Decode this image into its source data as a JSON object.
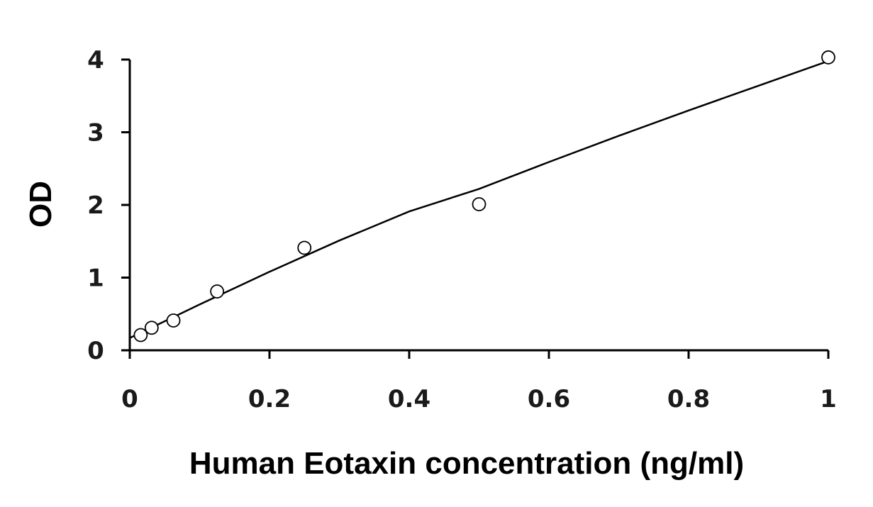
{
  "chart_data": {
    "type": "scatter",
    "title": "",
    "xlabel": "Human Eotaxin concentration (ng/ml)",
    "ylabel": "OD",
    "xlim": [
      0,
      1
    ],
    "ylim": [
      0,
      4
    ],
    "x_ticks": [
      "0",
      "0.2",
      "0.4",
      "0.6",
      "0.8",
      "1"
    ],
    "y_ticks": [
      "0",
      "1",
      "2",
      "3",
      "4"
    ],
    "grid": false,
    "legend": "none",
    "series": [
      {
        "marker": "open-circle",
        "x": [
          0.0156,
          0.0313,
          0.0625,
          0.125,
          0.25,
          0.5,
          1.0
        ],
        "y": [
          0.21,
          0.31,
          0.41,
          0.81,
          1.41,
          2.01,
          4.03
        ]
      }
    ],
    "fit_line": {
      "x": [
        0,
        0.1,
        0.2,
        0.3,
        0.4,
        0.5,
        0.6,
        0.7,
        0.8,
        0.9,
        1.0
      ],
      "y": [
        0.17,
        0.63,
        1.08,
        1.51,
        1.91,
        2.22,
        2.59,
        2.95,
        3.3,
        3.64,
        3.98
      ]
    },
    "colors": {
      "axis": "#000000",
      "marker_stroke": "#000000",
      "fit": "#000000"
    }
  }
}
